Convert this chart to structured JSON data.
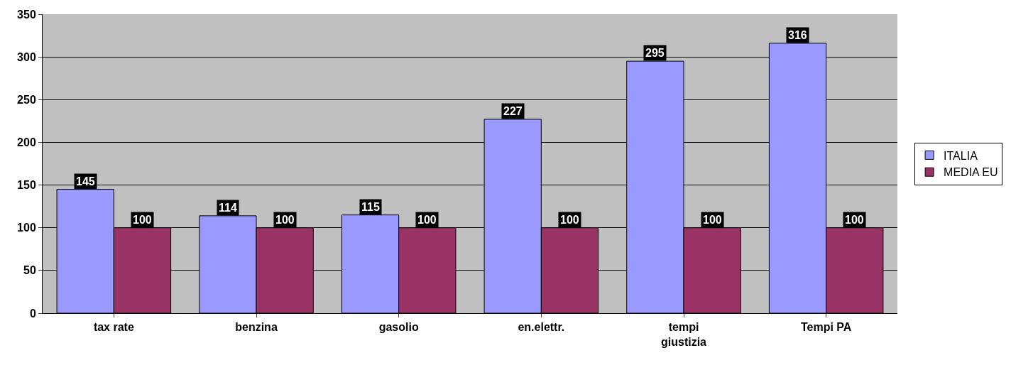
{
  "chart_data": {
    "type": "bar",
    "categories": [
      "tax rate",
      "benzina",
      "gasolio",
      "en.elettr.",
      "tempi giustizia",
      "Tempi PA"
    ],
    "series": [
      {
        "name": "ITALIA",
        "color": "#9999ff",
        "values": [
          145,
          114,
          115,
          227,
          295,
          316
        ]
      },
      {
        "name": "MEDIA EU",
        "color": "#993366",
        "values": [
          100,
          100,
          100,
          100,
          100,
          100
        ]
      }
    ],
    "ylim": [
      0,
      350
    ],
    "yticks": [
      0,
      50,
      100,
      150,
      200,
      250,
      300,
      350
    ],
    "grid": "y",
    "legend": "right",
    "data_labels": true
  }
}
